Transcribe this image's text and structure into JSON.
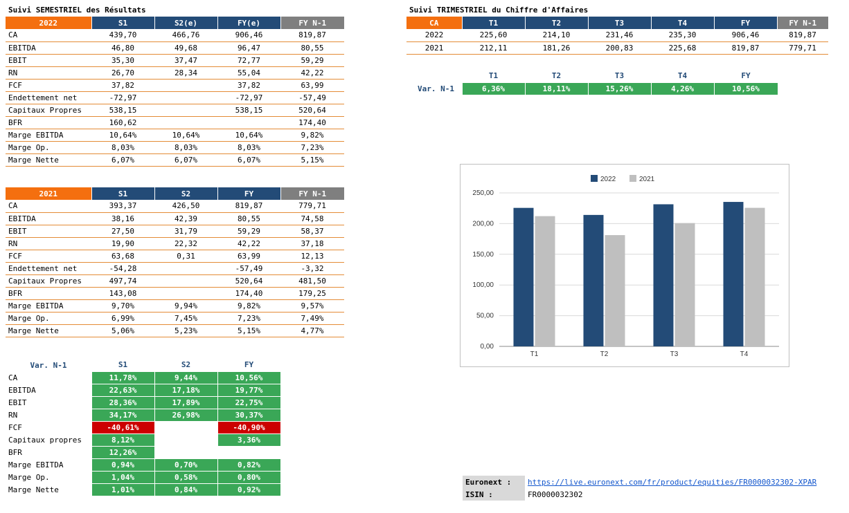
{
  "sem": {
    "title": "Suivi SEMESTRIEL des Résultats",
    "t2022": {
      "headers": [
        "2022",
        "S1",
        "S2(e)",
        "FY(e)",
        "FY N-1"
      ],
      "rows": [
        {
          "label": "CA",
          "v": [
            "439,70",
            "466,76",
            "906,46",
            "819,87"
          ]
        },
        {
          "label": "EBITDA",
          "v": [
            "46,80",
            "49,68",
            "96,47",
            "80,55"
          ]
        },
        {
          "label": "EBIT",
          "v": [
            "35,30",
            "37,47",
            "72,77",
            "59,29"
          ]
        },
        {
          "label": "RN",
          "v": [
            "26,70",
            "28,34",
            "55,04",
            "42,22"
          ]
        },
        {
          "label": "FCF",
          "v": [
            "37,82",
            "",
            "37,82",
            "63,99"
          ]
        },
        {
          "label": "Endettement net",
          "v": [
            "-72,97",
            "",
            "-72,97",
            "-57,49"
          ]
        },
        {
          "label": "Capitaux Propres",
          "v": [
            "538,15",
            "",
            "538,15",
            "520,64"
          ]
        },
        {
          "label": "BFR",
          "v": [
            "160,62",
            "",
            "",
            "174,40"
          ]
        },
        {
          "label": "Marge EBITDA",
          "v": [
            "10,64%",
            "10,64%",
            "10,64%",
            "9,82%"
          ]
        },
        {
          "label": "Marge Op.",
          "v": [
            "8,03%",
            "8,03%",
            "8,03%",
            "7,23%"
          ]
        },
        {
          "label": "Marge Nette",
          "v": [
            "6,07%",
            "6,07%",
            "6,07%",
            "5,15%"
          ]
        }
      ]
    },
    "t2021": {
      "headers": [
        "2021",
        "S1",
        "S2",
        "FY",
        "FY N-1"
      ],
      "rows": [
        {
          "label": "CA",
          "v": [
            "393,37",
            "426,50",
            "819,87",
            "779,71"
          ]
        },
        {
          "label": "EBITDA",
          "v": [
            "38,16",
            "42,39",
            "80,55",
            "74,58"
          ]
        },
        {
          "label": "EBIT",
          "v": [
            "27,50",
            "31,79",
            "59,29",
            "58,37"
          ]
        },
        {
          "label": "RN",
          "v": [
            "19,90",
            "22,32",
            "42,22",
            "37,18"
          ]
        },
        {
          "label": "FCF",
          "v": [
            "63,68",
            "0,31",
            "63,99",
            "12,13"
          ]
        },
        {
          "label": "Endettement net",
          "v": [
            "-54,28",
            "",
            "-57,49",
            "-3,32"
          ]
        },
        {
          "label": "Capitaux Propres",
          "v": [
            "497,74",
            "",
            "520,64",
            "481,50"
          ]
        },
        {
          "label": "BFR",
          "v": [
            "143,08",
            "",
            "174,40",
            "179,25"
          ]
        },
        {
          "label": "Marge EBITDA",
          "v": [
            "9,70%",
            "9,94%",
            "9,82%",
            "9,57%"
          ]
        },
        {
          "label": "Marge Op.",
          "v": [
            "6,99%",
            "7,45%",
            "7,23%",
            "7,49%"
          ]
        },
        {
          "label": "Marge Nette",
          "v": [
            "5,06%",
            "5,23%",
            "5,15%",
            "4,77%"
          ]
        }
      ]
    },
    "var": {
      "headers": [
        "Var. N-1",
        "S1",
        "S2",
        "FY"
      ],
      "rows": [
        {
          "label": "CA",
          "v": [
            "11,78%",
            "9,44%",
            "10,56%"
          ]
        },
        {
          "label": "EBITDA",
          "v": [
            "22,63%",
            "17,18%",
            "19,77%"
          ]
        },
        {
          "label": "EBIT",
          "v": [
            "28,36%",
            "17,89%",
            "22,75%"
          ]
        },
        {
          "label": "RN",
          "v": [
            "34,17%",
            "26,98%",
            "30,37%"
          ]
        },
        {
          "label": "FCF",
          "v": [
            "-40,61%",
            "",
            "-40,90%"
          ]
        },
        {
          "label": "Capitaux propres",
          "v": [
            "8,12%",
            "",
            "3,36%"
          ]
        },
        {
          "label": "BFR",
          "v": [
            "12,26%",
            "",
            ""
          ]
        },
        {
          "label": "Marge EBITDA",
          "v": [
            "0,94%",
            "0,70%",
            "0,82%"
          ]
        },
        {
          "label": "Marge Op.",
          "v": [
            "1,04%",
            "0,58%",
            "0,80%"
          ]
        },
        {
          "label": "Marge Nette",
          "v": [
            "1,01%",
            "0,84%",
            "0,92%"
          ]
        }
      ]
    }
  },
  "tri": {
    "title": "Suivi TRIMESTRIEL du Chiffre d'Affaires",
    "headers": [
      "CA",
      "T1",
      "T2",
      "T3",
      "T4",
      "FY",
      "FY N-1"
    ],
    "rows": [
      {
        "label": "2022",
        "v": [
          "225,60",
          "214,10",
          "231,46",
          "235,30",
          "906,46",
          "819,87"
        ]
      },
      {
        "label": "2021",
        "v": [
          "212,11",
          "181,26",
          "200,83",
          "225,68",
          "819,87",
          "779,71"
        ]
      }
    ],
    "var": {
      "label": "Var. N-1",
      "headers": [
        "T1",
        "T2",
        "T3",
        "T4",
        "FY"
      ],
      "values": [
        "6,36%",
        "18,11%",
        "15,26%",
        "4,26%",
        "10,56%"
      ]
    }
  },
  "chart_data": {
    "type": "bar",
    "categories": [
      "T1",
      "T2",
      "T3",
      "T4"
    ],
    "series": [
      {
        "name": "2022",
        "values": [
          225.6,
          214.1,
          231.46,
          235.3
        ],
        "color": "#234b77"
      },
      {
        "name": "2021",
        "values": [
          212.11,
          181.26,
          200.83,
          225.68
        ],
        "color": "#bfbfbf"
      }
    ],
    "yticks": [
      "250,00",
      "200,00",
      "150,00",
      "100,00",
      "50,00",
      "0,00"
    ],
    "ylim": [
      0,
      250
    ],
    "legend": "top-center",
    "grid": true
  },
  "footer": {
    "euronext_label": "Euronext :",
    "euronext_url": "https://live.euronext.com/fr/product/equities/FR0000032302-XPAR",
    "isin_label": "ISIN :",
    "isin_value": "FR0000032302"
  },
  "colors": {
    "orange": "#f46f0f",
    "navy": "#234b77",
    "grey": "#7f7f7f",
    "green": "#3aa757",
    "red": "#cc0000"
  }
}
